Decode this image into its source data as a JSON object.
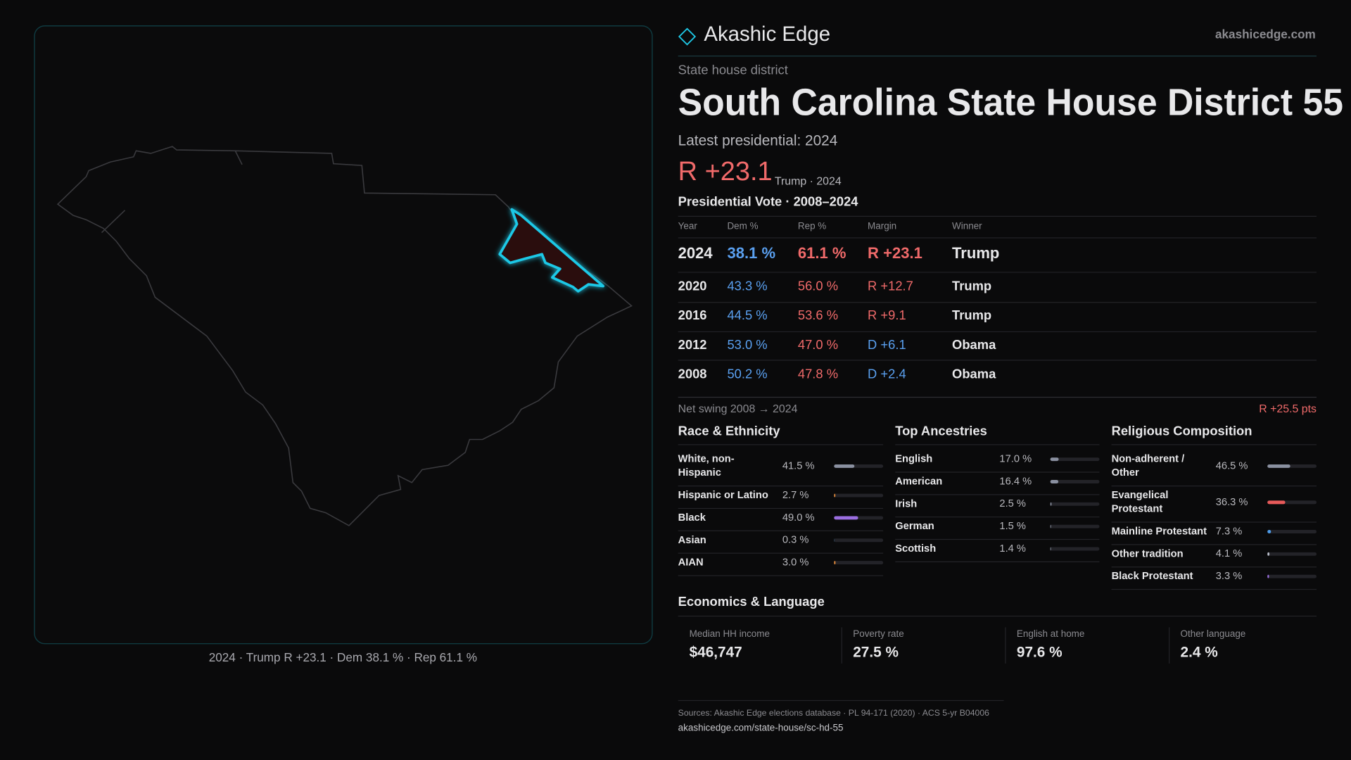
{
  "brand": {
    "name": "Akashic Edge",
    "site": "akashicedge.com"
  },
  "header": {
    "kicker": "State house district",
    "title": "South Carolina State House District 55",
    "latest": "Latest presidential: 2024",
    "margin": "R +23.1",
    "margin_note": "Trump · 2024"
  },
  "map": {
    "caption": "2024 · Trump R +23.1 · Dem 38.1 % · Rep 61.1 %"
  },
  "vote_table": {
    "title": "Presidential Vote · 2008–2024",
    "columns": [
      "Year",
      "Dem %",
      "Rep %",
      "Margin",
      "Winner"
    ],
    "rows": [
      [
        "2024",
        "38.1 %",
        "61.1 %",
        "R +23.1",
        "Trump"
      ],
      [
        "2020",
        "43.3 %",
        "56.0 %",
        "R +12.7",
        "Trump"
      ],
      [
        "2016",
        "44.5 %",
        "53.6 %",
        "R +9.1",
        "Trump"
      ],
      [
        "2012",
        "53.0 %",
        "47.0 %",
        "D +6.1",
        "Obama"
      ],
      [
        "2008",
        "50.2 %",
        "47.8 %",
        "D +2.4",
        "Obama"
      ]
    ]
  },
  "swing": {
    "label": "Net swing 2008 → 2024",
    "value": "R +25.5 pts"
  },
  "race": {
    "title": "Race & Ethnicity",
    "items": [
      {
        "label": "White, non-Hispanic",
        "value": 41.5,
        "value_label": "41.5 %",
        "color": "#8a90a0"
      },
      {
        "label": "Hispanic or Latino",
        "value": 2.7,
        "value_label": "2.7 %",
        "color": "#e08a3c"
      },
      {
        "label": "Black",
        "value": 49.0,
        "value_label": "49.0 %",
        "color": "#9a6ee0"
      },
      {
        "label": "Asian",
        "value": 0.3,
        "value_label": "0.3 %",
        "color": "#4da3e6"
      },
      {
        "label": "AIAN",
        "value": 3.0,
        "value_label": "3.0 %",
        "color": "#e08a3c"
      }
    ]
  },
  "ancestry": {
    "title": "Top Ancestries",
    "items": [
      {
        "label": "English",
        "value": 17.0,
        "value_label": "17.0 %",
        "color": "#8a90a0"
      },
      {
        "label": "American",
        "value": 16.4,
        "value_label": "16.4 %",
        "color": "#8a90a0"
      },
      {
        "label": "Irish",
        "value": 2.5,
        "value_label": "2.5 %",
        "color": "#8a90a0"
      },
      {
        "label": "German",
        "value": 1.5,
        "value_label": "1.5 %",
        "color": "#8a90a0"
      },
      {
        "label": "Scottish",
        "value": 1.4,
        "value_label": "1.4 %",
        "color": "#8a90a0"
      }
    ]
  },
  "religion": {
    "title": "Religious Composition",
    "items": [
      {
        "label": "Non-adherent / Other",
        "value": 46.5,
        "value_label": "46.5 %",
        "color": "#8a90a0"
      },
      {
        "label": "Evangelical Protestant",
        "value": 36.3,
        "value_label": "36.3 %",
        "color": "#e85a5a"
      },
      {
        "label": "Mainline Protestant",
        "value": 7.3,
        "value_label": "7.3 %",
        "color": "#4d9ae6"
      },
      {
        "label": "Other tradition",
        "value": 4.1,
        "value_label": "4.1 %",
        "color": "#b8bcc8"
      },
      {
        "label": "Black Protestant",
        "value": 3.3,
        "value_label": "3.3 %",
        "color": "#9a6ee0"
      }
    ]
  },
  "economics": {
    "title": "Economics & Language",
    "items": [
      {
        "label": "Median HH income",
        "value": "$46,747"
      },
      {
        "label": "Poverty rate",
        "value": "27.5 %"
      },
      {
        "label": "English at home",
        "value": "97.6 %"
      },
      {
        "label": "Other language",
        "value": "2.4 %"
      }
    ]
  },
  "footer": {
    "sources": "Sources: Akashic Edge elections database · PL 94-171 (2020) · ACS 5-yr B04006",
    "url": "akashicedge.com/state-house/sc-hd-55"
  },
  "colors": {
    "dem": "#5aa0f0",
    "rep": "#f06a6a"
  }
}
